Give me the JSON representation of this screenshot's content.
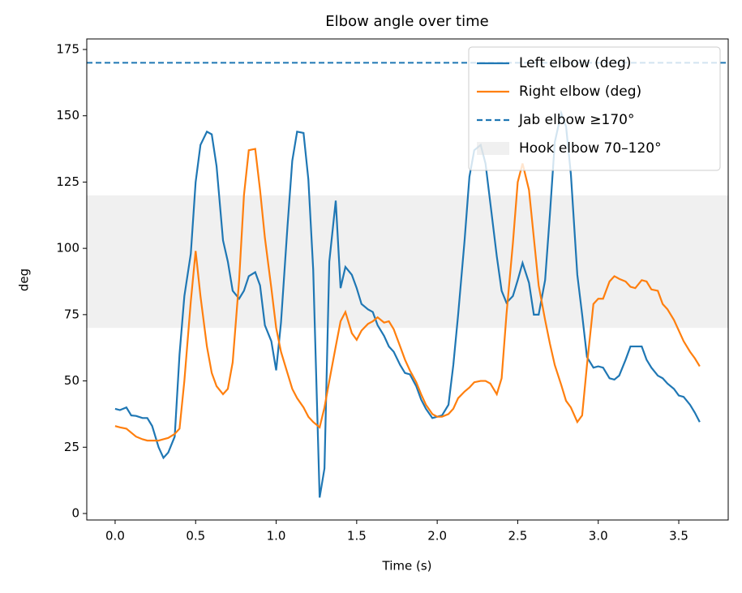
{
  "chart_data": {
    "type": "line",
    "title": "Elbow angle over time",
    "x_label": "Time (s)",
    "y_label": "deg",
    "x": [
      0,
      0.03,
      0.07,
      0.1,
      0.13,
      0.17,
      0.2,
      0.23,
      0.27,
      0.3,
      0.33,
      0.37,
      0.4,
      0.43,
      0.47,
      0.5,
      0.53,
      0.57,
      0.6,
      0.63,
      0.67,
      0.7,
      0.73,
      0.77,
      0.8,
      0.83,
      0.87,
      0.9,
      0.93,
      0.97,
      1.0,
      1.03,
      1.07,
      1.1,
      1.13,
      1.17,
      1.2,
      1.23,
      1.27,
      1.3,
      1.33,
      1.37,
      1.4,
      1.43,
      1.47,
      1.5,
      1.53,
      1.57,
      1.6,
      1.63,
      1.67,
      1.7,
      1.73,
      1.77,
      1.8,
      1.83,
      1.87,
      1.9,
      1.93,
      1.97,
      2.0,
      2.03,
      2.07,
      2.1,
      2.13,
      2.17,
      2.2,
      2.23,
      2.27,
      2.3,
      2.33,
      2.37,
      2.4,
      2.43,
      2.47,
      2.5,
      2.53,
      2.57,
      2.6,
      2.63,
      2.67,
      2.7,
      2.73,
      2.77,
      2.8,
      2.83,
      2.87,
      2.9,
      2.93,
      2.97,
      3.0,
      3.03,
      3.07,
      3.1,
      3.13,
      3.17,
      3.2,
      3.23,
      3.27,
      3.3,
      3.33,
      3.37,
      3.4,
      3.43,
      3.47,
      3.5,
      3.53,
      3.57,
      3.6,
      3.63
    ],
    "series": [
      {
        "name": "Left elbow (deg)",
        "color": "#1f77b4",
        "values": [
          39.5,
          39,
          40,
          37,
          36.8,
          36,
          36,
          33,
          25,
          21,
          23,
          29,
          60,
          82,
          98,
          125,
          139,
          144,
          143,
          131,
          103,
          95,
          84,
          81,
          84,
          89.5,
          91,
          86,
          71,
          65,
          54,
          72,
          108,
          133,
          144,
          143.5,
          126,
          92,
          6,
          17,
          95,
          118,
          85,
          93,
          90,
          85,
          79,
          77,
          76,
          71,
          67,
          63,
          61,
          56,
          53,
          52.5,
          48,
          43,
          39.5,
          36,
          36.5,
          37,
          41,
          56,
          75,
          103,
          127,
          137,
          139,
          132,
          117,
          97,
          84,
          79.5,
          82,
          88,
          94.5,
          87,
          75,
          75,
          88,
          113,
          140,
          151,
          146,
          128,
          90,
          75,
          59,
          55,
          55.5,
          55,
          51,
          50.5,
          52,
          58,
          63,
          63,
          63,
          58,
          55,
          52,
          51,
          49,
          47,
          44.5,
          44,
          41,
          38,
          34.5
        ]
      },
      {
        "name": "Right elbow (deg)",
        "color": "#ff7f0e",
        "values": [
          33,
          32.5,
          32,
          30.5,
          29,
          28,
          27.5,
          27.5,
          27.5,
          28,
          28.5,
          30,
          32,
          50,
          80,
          99,
          82,
          63,
          53,
          48,
          45,
          47,
          57,
          88,
          120,
          137,
          137.5,
          122,
          104,
          85,
          70,
          61,
          53,
          47,
          43.5,
          40,
          36.5,
          34.5,
          32.5,
          40,
          50,
          63,
          72.5,
          76,
          68,
          65.5,
          69,
          71.5,
          72.5,
          74,
          72,
          72.5,
          69.5,
          63,
          58,
          54,
          49.5,
          45,
          41,
          37.5,
          36.5,
          36.5,
          37.5,
          39.5,
          43.5,
          46,
          47.5,
          49.5,
          50,
          50,
          49,
          45,
          51,
          75,
          102,
          125,
          132,
          122,
          104,
          86,
          73,
          64,
          56,
          48.5,
          42.5,
          40,
          34.5,
          37,
          56,
          79,
          81,
          81,
          87.5,
          89.5,
          88.5,
          87.5,
          85.5,
          85,
          88,
          87.5,
          84.5,
          84,
          79,
          77,
          73,
          69,
          65,
          61,
          58.5,
          55.5
        ]
      }
    ],
    "hlines": [
      {
        "name": "Jab elbow ≥170°",
        "y": 170,
        "color": "#1f77b4"
      }
    ],
    "bands": [
      {
        "name": "Hook elbow 70–120°",
        "y0": 70,
        "y1": 120,
        "color": "#d9d9d9"
      }
    ],
    "xlim": [
      -0.176,
      3.807
    ],
    "ylim": [
      -2.45,
      178.98
    ],
    "xticks": [
      {
        "value": 0,
        "label": "0.0"
      },
      0.5,
      {
        "value": 1,
        "label": "1.0"
      },
      1.5,
      {
        "value": 2,
        "label": "2.0"
      },
      2.5,
      {
        "value": 3,
        "label": "3.0"
      },
      3.5
    ],
    "yticks": [
      0,
      25,
      50,
      75,
      100,
      125,
      150,
      175
    ],
    "legend": "upper right"
  }
}
